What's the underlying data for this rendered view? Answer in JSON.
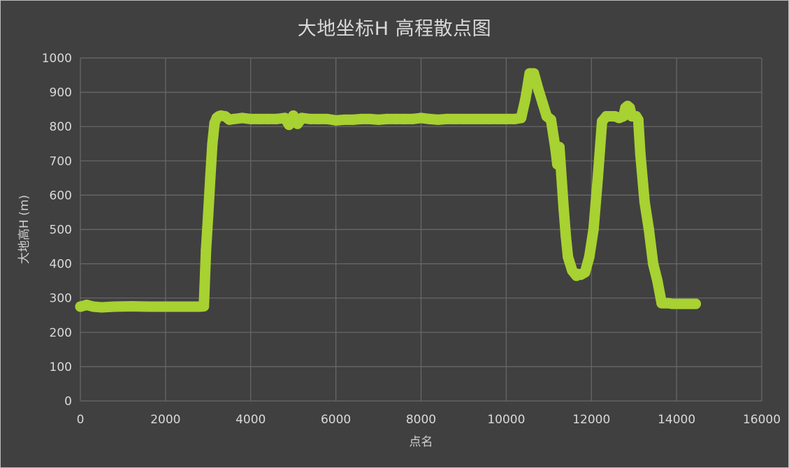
{
  "chart_data": {
    "type": "scatter",
    "title": "大地坐标H 高程散点图",
    "xlabel": "点名",
    "ylabel": "大地高H (m)",
    "xlim": [
      0,
      16000
    ],
    "ylim": [
      0,
      1000
    ],
    "xticks": [
      "0",
      "2000",
      "4000",
      "6000",
      "8000",
      "10000",
      "12000",
      "14000",
      "16000"
    ],
    "yticks": [
      "0",
      "100",
      "200",
      "300",
      "400",
      "500",
      "600",
      "700",
      "800",
      "900",
      "1000"
    ],
    "grid": true,
    "legend": "none",
    "series_color": "#a8d132",
    "x": [
      0,
      150,
      300,
      500,
      800,
      1200,
      1600,
      2000,
      2400,
      2800,
      2900,
      2950,
      3000,
      3050,
      3100,
      3150,
      3200,
      3250,
      3300,
      3400,
      3500,
      3600,
      3800,
      4000,
      4200,
      4400,
      4600,
      4800,
      4900,
      5000,
      5100,
      5200,
      5400,
      5600,
      5800,
      6000,
      6200,
      6400,
      6600,
      6800,
      7000,
      7200,
      7400,
      7600,
      7800,
      8000,
      8200,
      8400,
      8600,
      8800,
      9000,
      9200,
      9400,
      9600,
      9800,
      10000,
      10200,
      10350,
      10450,
      10550,
      10650,
      10750,
      10850,
      10950,
      11050,
      11150,
      11200,
      11250,
      11350,
      11400,
      11450,
      11550,
      11650,
      11700,
      11750,
      11850,
      11950,
      12050,
      12150,
      12250,
      12350,
      12450,
      12550,
      12650,
      12750,
      12800,
      12850,
      12900,
      12950,
      13000,
      13050,
      13100,
      13150,
      13250,
      13350,
      13450,
      13550,
      13650,
      13700,
      13800,
      13900,
      14000,
      14150,
      14300,
      14450
    ],
    "y": [
      275,
      280,
      275,
      273,
      275,
      276,
      275,
      275,
      275,
      275,
      276,
      440,
      540,
      650,
      750,
      810,
      825,
      830,
      832,
      830,
      820,
      822,
      825,
      822,
      822,
      822,
      822,
      825,
      805,
      832,
      808,
      825,
      822,
      822,
      822,
      818,
      820,
      820,
      822,
      822,
      820,
      822,
      822,
      822,
      822,
      825,
      822,
      820,
      822,
      822,
      822,
      822,
      822,
      822,
      822,
      822,
      822,
      825,
      880,
      955,
      955,
      910,
      870,
      830,
      820,
      740,
      690,
      740,
      560,
      480,
      420,
      380,
      365,
      370,
      368,
      375,
      420,
      500,
      650,
      815,
      830,
      830,
      830,
      825,
      830,
      855,
      860,
      855,
      830,
      830,
      830,
      820,
      720,
      580,
      500,
      400,
      350,
      285,
      285,
      285,
      283,
      283,
      283,
      283,
      283
    ]
  }
}
